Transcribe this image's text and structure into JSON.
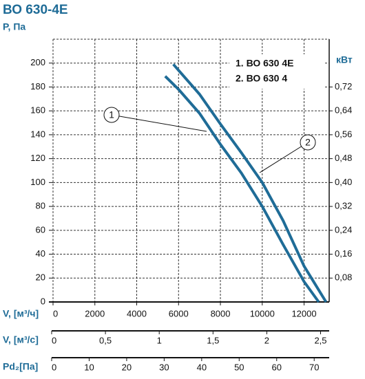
{
  "chart_data": {
    "type": "line",
    "title": "ВО 630-4Е",
    "ylabel": "P, Па",
    "y2label": "кВт",
    "xlabel": "V, [м³/ч]",
    "xlim": [
      0,
      13200
    ],
    "xticks": [
      0,
      2000,
      4000,
      6000,
      8000,
      10000,
      12000
    ],
    "ylim": [
      0,
      220
    ],
    "yticks": [
      0,
      20,
      40,
      60,
      80,
      100,
      120,
      140,
      160,
      180,
      200
    ],
    "y2lim": [
      0,
      0.88
    ],
    "y2ticks": [
      {
        "value": 0.08,
        "label": "0,08"
      },
      {
        "value": 0.16,
        "label": "0,16"
      },
      {
        "value": 0.24,
        "label": "0,24"
      },
      {
        "value": 0.32,
        "label": "0,32"
      },
      {
        "value": 0.4,
        "label": "0,40"
      },
      {
        "value": 0.48,
        "label": "0,48"
      },
      {
        "value": 0.56,
        "label": "0,56"
      },
      {
        "value": 0.64,
        "label": "0,64"
      },
      {
        "value": 0.72,
        "label": "0,72"
      }
    ],
    "grid": true,
    "legend": "upper right",
    "series": [
      {
        "name": "1. ВО 630 4Е",
        "callout": "1",
        "color": "#1f6c97",
        "x": [
          5360,
          6000,
          7000,
          8000,
          9000,
          10000,
          11000,
          12000,
          12700
        ],
        "values": [
          189,
          178,
          158,
          132,
          108,
          80,
          48,
          17,
          0
        ]
      },
      {
        "name": "2. ВО 630 4",
        "callout": "2",
        "color": "#1f6c97",
        "x": [
          5750,
          6000,
          7000,
          8000,
          9000,
          10000,
          11000,
          12000,
          13050
        ],
        "values": [
          199,
          194,
          174,
          149,
          125,
          100,
          68,
          30,
          0
        ]
      }
    ],
    "extra_axes": [
      {
        "label": "V, [м³/с]",
        "xlim": [
          0,
          2.58
        ],
        "xticks": [
          0,
          {
            "value": 0.5,
            "label": "0,5"
          },
          1,
          {
            "value": 1.5,
            "label": "1,5"
          },
          2,
          {
            "value": 2.5,
            "label": "2,5"
          }
        ]
      },
      {
        "label": "Pd₂[Па]",
        "xlim": [
          0,
          74
        ],
        "xticks": [
          0,
          10,
          20,
          30,
          40,
          50,
          60,
          70
        ]
      }
    ]
  }
}
